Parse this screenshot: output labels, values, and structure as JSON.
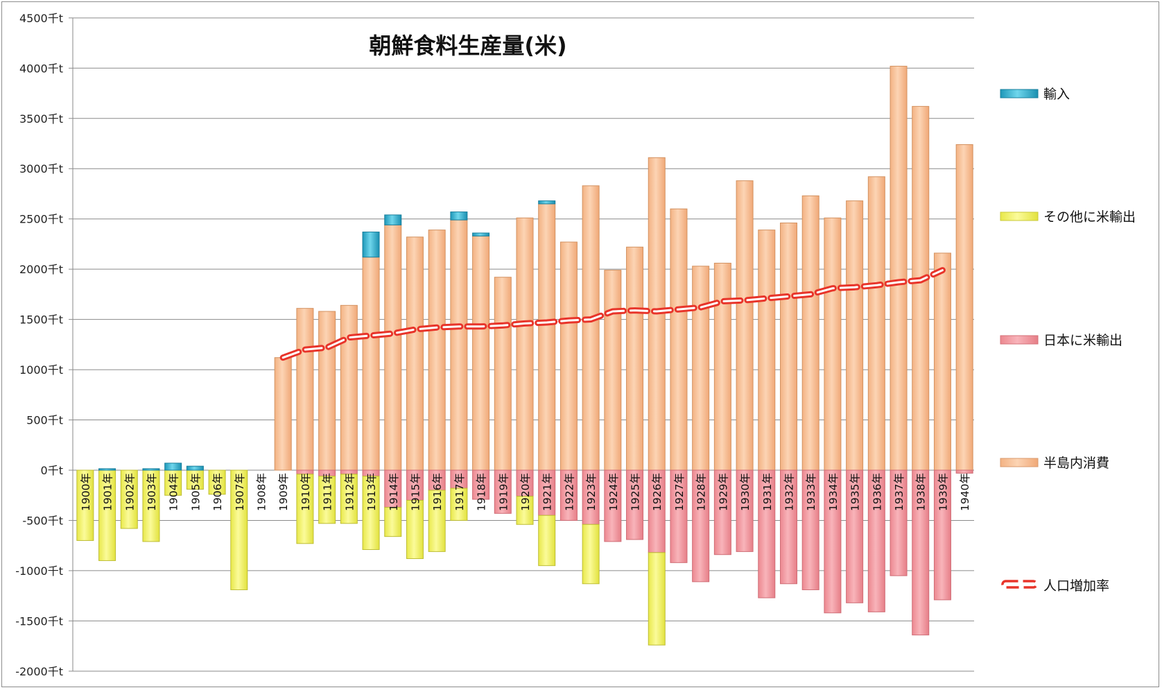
{
  "chart_data": {
    "type": "bar",
    "title": "朝鮮食料生産量(米)",
    "ylim": [
      -2000,
      4500
    ],
    "yticks": [
      -2000,
      -1500,
      -1000,
      -500,
      0,
      500,
      1000,
      1500,
      2000,
      2500,
      3000,
      3500,
      4000,
      4500
    ],
    "ytick_labels": [
      "-2000千t",
      "-1500千t",
      "-1000千t",
      "-500千t",
      "0千t",
      "500千t",
      "1000千t",
      "1500千t",
      "2000千t",
      "2500千t",
      "3000千t",
      "3500千t",
      "4000千t",
      "4500千t"
    ],
    "grid": true,
    "legend_position": "right",
    "categories": [
      "1900年",
      "1901年",
      "1902年",
      "1903年",
      "1904年",
      "1905年",
      "1906年",
      "1907年",
      "1908年",
      "1909年",
      "1910年",
      "1911年",
      "1912年",
      "1913年",
      "1914年",
      "1915年",
      "1916年",
      "1917年",
      "1918年",
      "1919年",
      "1920年",
      "1921年",
      "1922年",
      "1923年",
      "1924年",
      "1925年",
      "1926年",
      "1927年",
      "1928年",
      "1929年",
      "1930年",
      "1931年",
      "1932年",
      "1933年",
      "1934年",
      "1935年",
      "1936年",
      "1937年",
      "1938年",
      "1939年",
      "1940年"
    ],
    "series": [
      {
        "name": "輸入",
        "kind": "bar",
        "color": "#3ab4d4",
        "values": [
          0,
          15,
          0,
          15,
          70,
          40,
          0,
          0,
          0,
          0,
          0,
          0,
          0,
          250,
          100,
          0,
          0,
          80,
          30,
          0,
          0,
          30,
          0,
          0,
          0,
          0,
          0,
          0,
          0,
          0,
          0,
          0,
          0,
          0,
          0,
          0,
          0,
          0,
          0,
          0,
          0
        ]
      },
      {
        "name": "その他に米輸出",
        "kind": "bar",
        "color": "#f6f56a",
        "values": [
          -700,
          -900,
          -580,
          -710,
          -250,
          -190,
          -240,
          -1190,
          0,
          0,
          -690,
          -470,
          -490,
          -730,
          -290,
          -580,
          -610,
          -320,
          0,
          0,
          -280,
          -500,
          0,
          -590,
          0,
          0,
          -920,
          0,
          0,
          0,
          0,
          0,
          0,
          0,
          0,
          0,
          0,
          0,
          0,
          0,
          0
        ]
      },
      {
        "name": "日本に米輸出",
        "kind": "bar",
        "color": "#f4a0a8",
        "values": [
          0,
          0,
          0,
          0,
          0,
          0,
          0,
          0,
          0,
          0,
          -40,
          -60,
          -40,
          -60,
          -370,
          -300,
          -200,
          -180,
          -290,
          -430,
          -260,
          -450,
          -500,
          -540,
          -710,
          -690,
          -820,
          -920,
          -1110,
          -840,
          -810,
          -1270,
          -1130,
          -1190,
          -1420,
          -1320,
          -1410,
          -1050,
          -1640,
          -1290,
          -30
        ]
      },
      {
        "name": "半島内消費",
        "kind": "bar",
        "color": "#f9c49a",
        "values": [
          0,
          0,
          0,
          0,
          0,
          0,
          0,
          0,
          0,
          1120,
          1610,
          1580,
          1640,
          2120,
          2440,
          2320,
          2390,
          2490,
          2330,
          1920,
          2510,
          2650,
          2270,
          2830,
          1990,
          2220,
          3110,
          2600,
          2030,
          2060,
          2880,
          2390,
          2460,
          2730,
          2510,
          2680,
          2920,
          4020,
          3620,
          2160,
          3240
        ]
      },
      {
        "name": "人口増加率",
        "kind": "line",
        "color": "#e8342a",
        "values": [
          null,
          null,
          null,
          null,
          null,
          null,
          null,
          null,
          null,
          1120,
          1200,
          1220,
          1320,
          1340,
          1360,
          1400,
          1420,
          1430,
          1430,
          1440,
          1460,
          1470,
          1490,
          1500,
          1580,
          1590,
          1580,
          1600,
          1620,
          1680,
          1690,
          1710,
          1730,
          1750,
          1810,
          1820,
          1840,
          1870,
          1890,
          1990,
          null
        ]
      }
    ]
  }
}
